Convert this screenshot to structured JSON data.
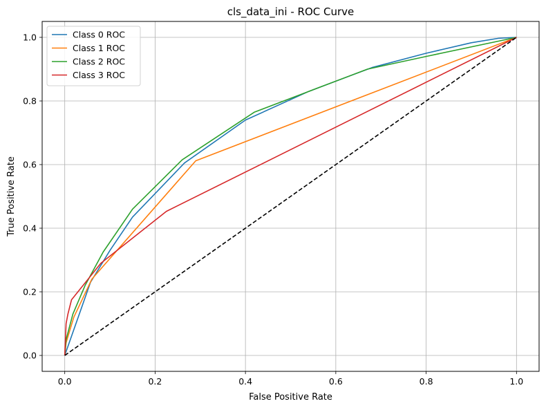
{
  "chart_data": {
    "type": "line",
    "title": "cls_data_ini - ROC Curve",
    "xlabel": "False Positive Rate",
    "ylabel": "True Positive Rate",
    "xlim": [
      -0.05,
      1.05
    ],
    "ylim": [
      -0.05,
      1.05
    ],
    "xticks": [
      "0.0",
      "0.2",
      "0.4",
      "0.6",
      "0.8",
      "1.0"
    ],
    "yticks": [
      "0.0",
      "0.2",
      "0.4",
      "0.6",
      "0.8",
      "1.0"
    ],
    "grid": true,
    "legend_position": "top-left",
    "series": [
      {
        "name": "Class 0 ROC",
        "color": "#1f77b4",
        "points": [
          [
            0,
            0
          ],
          [
            0.057,
            0.23
          ],
          [
            0.1,
            0.33
          ],
          [
            0.15,
            0.435
          ],
          [
            0.265,
            0.605
          ],
          [
            0.4,
            0.74
          ],
          [
            0.54,
            0.83
          ],
          [
            0.68,
            0.905
          ],
          [
            0.8,
            0.95
          ],
          [
            0.9,
            0.983
          ],
          [
            0.96,
            0.997
          ],
          [
            1,
            1
          ]
        ]
      },
      {
        "name": "Class 1 ROC",
        "color": "#ff7f0e",
        "points": [
          [
            0,
            0
          ],
          [
            0.003,
            0.04
          ],
          [
            0.02,
            0.12
          ],
          [
            0.06,
            0.24
          ],
          [
            0.29,
            0.612
          ],
          [
            1,
            1
          ]
        ]
      },
      {
        "name": "Class 2 ROC",
        "color": "#2ca02c",
        "points": [
          [
            0,
            0
          ],
          [
            0.003,
            0.05
          ],
          [
            0.018,
            0.13
          ],
          [
            0.045,
            0.22
          ],
          [
            0.085,
            0.325
          ],
          [
            0.15,
            0.46
          ],
          [
            0.26,
            0.615
          ],
          [
            0.42,
            0.765
          ],
          [
            0.54,
            0.83
          ],
          [
            0.67,
            0.9
          ],
          [
            0.8,
            0.94
          ],
          [
            1,
            1
          ]
        ]
      },
      {
        "name": "Class 3 ROC",
        "color": "#d62728",
        "points": [
          [
            0,
            0
          ],
          [
            0.003,
            0.1
          ],
          [
            0.007,
            0.13
          ],
          [
            0.015,
            0.175
          ],
          [
            0.08,
            0.29
          ],
          [
            0.225,
            0.453
          ],
          [
            1,
            1
          ]
        ]
      }
    ],
    "reference_line": {
      "color": "#000000",
      "style": "dashed",
      "points": [
        [
          0,
          0
        ],
        [
          1,
          1
        ]
      ]
    }
  }
}
